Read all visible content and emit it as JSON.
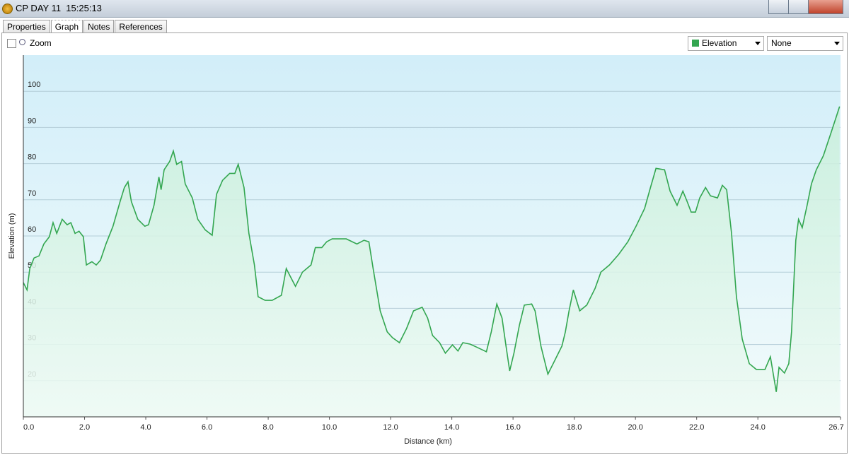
{
  "window": {
    "title": "CP DAY 11  15:25:13",
    "tabs": [
      "Properties",
      "Graph",
      "Notes",
      "References"
    ],
    "zoom": "Zoom",
    "second_select": "None"
  },
  "chart_data": {
    "type": "line",
    "xlabel": "Distance (km)",
    "ylabel": "Elevation (m)",
    "x": [
      0.0,
      0.12,
      0.21,
      0.35,
      0.51,
      0.67,
      0.85,
      0.97,
      1.09,
      1.27,
      1.43,
      1.55,
      1.69,
      1.82,
      1.96,
      2.06,
      2.24,
      2.38,
      2.52,
      2.7,
      2.93,
      3.16,
      3.3,
      3.42,
      3.53,
      3.74,
      3.97,
      4.09,
      4.27,
      4.43,
      4.5,
      4.6,
      4.78,
      4.9,
      5.01,
      5.17,
      5.29,
      5.52,
      5.7,
      5.94,
      6.17,
      6.31,
      6.51,
      6.74,
      6.91,
      7.02,
      7.21,
      7.37,
      7.55,
      7.67,
      7.9,
      8.13,
      8.43,
      8.59,
      8.71,
      8.89,
      9.12,
      9.4,
      9.54,
      9.75,
      9.91,
      10.09,
      10.55,
      10.9,
      11.13,
      11.29,
      11.43,
      11.66,
      11.89,
      12.06,
      12.29,
      12.52,
      12.75,
      13.03,
      13.21,
      13.37,
      13.6,
      13.79,
      14.02,
      14.2,
      14.36,
      14.6,
      14.83,
      15.13,
      15.29,
      15.47,
      15.64,
      15.77,
      15.89,
      16.03,
      16.21,
      16.37,
      16.61,
      16.72,
      16.91,
      17.14,
      17.37,
      17.6,
      17.71,
      17.83,
      17.97,
      18.18,
      18.41,
      18.68,
      18.87,
      19.15,
      19.45,
      19.75,
      20.02,
      20.3,
      20.49,
      20.67,
      20.95,
      21.13,
      21.36,
      21.55,
      21.69,
      21.82,
      21.96,
      22.1,
      22.29,
      22.45,
      22.68,
      22.84,
      22.98,
      23.14,
      23.3,
      23.49,
      23.72,
      23.95,
      24.23,
      24.41,
      24.6,
      24.69,
      24.87,
      25.01,
      25.1,
      25.24,
      25.33,
      25.45,
      25.61,
      25.75,
      25.91,
      26.14,
      26.37,
      26.56,
      26.67
    ],
    "series": [
      {
        "name": "Elevation",
        "color": "#33a650",
        "values": [
          47.1,
          45.1,
          51.0,
          53.9,
          54.5,
          57.8,
          59.8,
          63.7,
          60.7,
          64.6,
          63.1,
          63.7,
          60.7,
          61.3,
          59.8,
          52.0,
          52.9,
          52.0,
          53.3,
          57.8,
          62.7,
          69.5,
          73.4,
          75.0,
          69.5,
          64.6,
          62.7,
          63.1,
          68.5,
          76.3,
          72.8,
          78.3,
          80.6,
          83.5,
          79.8,
          80.6,
          74.4,
          70.5,
          64.6,
          61.7,
          60.2,
          71.5,
          75.4,
          77.3,
          77.3,
          79.8,
          73.4,
          60.7,
          52.0,
          43.2,
          42.2,
          42.2,
          43.6,
          51.0,
          49.0,
          46.1,
          50.0,
          52.0,
          56.8,
          56.8,
          58.4,
          59.2,
          59.2,
          57.8,
          58.8,
          58.4,
          51.0,
          39.3,
          33.5,
          31.9,
          30.5,
          34.4,
          39.3,
          40.3,
          37.3,
          32.5,
          30.5,
          27.6,
          29.9,
          28.2,
          30.5,
          30.1,
          29.2,
          28.0,
          33.5,
          41.2,
          37.3,
          29.6,
          22.7,
          27.6,
          35.4,
          40.9,
          41.2,
          39.3,
          29.6,
          21.8,
          25.7,
          29.6,
          33.5,
          39.3,
          45.1,
          39.3,
          40.9,
          45.5,
          50.0,
          52.0,
          54.9,
          58.4,
          62.7,
          67.6,
          73.4,
          78.7,
          78.3,
          72.4,
          68.5,
          72.4,
          69.5,
          66.6,
          66.6,
          70.5,
          73.4,
          71.1,
          70.5,
          74.0,
          72.8,
          60.7,
          43.2,
          31.5,
          24.7,
          23.1,
          23.1,
          26.6,
          16.9,
          23.7,
          22.1,
          24.7,
          33.5,
          58.8,
          64.6,
          62.3,
          68.5,
          74.4,
          78.3,
          82.2,
          88.0,
          92.9,
          95.8
        ]
      }
    ],
    "xlim": [
      0,
      26.7
    ],
    "ylim": [
      10,
      110
    ],
    "xticks": [
      {
        "value": 0,
        "label": "0.0"
      },
      {
        "value": 2,
        "label": "2.0"
      },
      {
        "value": 4,
        "label": "4.0"
      },
      {
        "value": 6,
        "label": "6.0"
      },
      {
        "value": 8,
        "label": "8.0"
      },
      {
        "value": 10,
        "label": "10.0"
      },
      {
        "value": 12,
        "label": "12.0"
      },
      {
        "value": 14,
        "label": "14.0"
      },
      {
        "value": 16,
        "label": "16.0"
      },
      {
        "value": 18,
        "label": "18.0"
      },
      {
        "value": 20,
        "label": "20.0"
      },
      {
        "value": 22,
        "label": "22.0"
      },
      {
        "value": 24,
        "label": "24.0"
      },
      26.7
    ],
    "yticks": [
      20,
      30,
      40,
      50,
      60,
      70,
      80,
      90,
      100
    ],
    "grid": true
  }
}
